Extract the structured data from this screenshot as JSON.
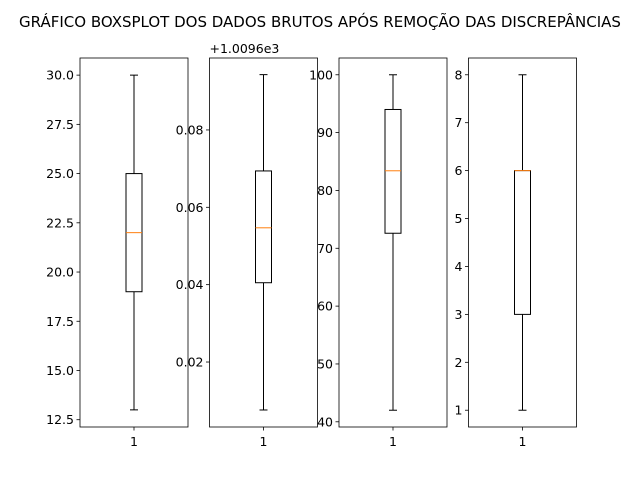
{
  "chart_data": {
    "type": "box",
    "title": "GRÁFICO BOXSPLOT DOS DADOS BRUTOS APÓS REMOÇÃO DAS DISCREPÂNCIAS",
    "colors": {
      "box": "#000000",
      "median": "#ff7f0e",
      "whisker": "#000000"
    },
    "subplots": [
      {
        "category": "1",
        "ylim": [
          12.13,
          30.87
        ],
        "yticks": [
          12.5,
          15.0,
          17.5,
          20.0,
          22.5,
          25.0,
          27.5,
          30.0
        ],
        "ytick_labels": [
          "12.5",
          "15.0",
          "17.5",
          "20.0",
          "22.5",
          "25.0",
          "27.5",
          "30.0"
        ],
        "offset_label": "",
        "box": {
          "whislo": 13.0,
          "q1": 19.0,
          "med": 22.0,
          "q3": 25.0,
          "whishi": 30.0
        }
      },
      {
        "category": "1",
        "ylim": [
          0.0032,
          0.0986
        ],
        "yticks": [
          0.02,
          0.04,
          0.06,
          0.08
        ],
        "ytick_labels": [
          "0.02",
          "0.04",
          "0.06",
          "0.08"
        ],
        "offset_label": "+1.0096e3",
        "box": {
          "whislo": 0.0076,
          "q1": 0.0405,
          "med": 0.0547,
          "q3": 0.0694,
          "whishi": 0.0943
        }
      },
      {
        "category": "1",
        "ylim": [
          39.1,
          102.9
        ],
        "yticks": [
          40,
          50,
          60,
          70,
          80,
          90,
          100
        ],
        "ytick_labels": [
          "40",
          "50",
          "60",
          "70",
          "80",
          "90",
          "100"
        ],
        "offset_label": "",
        "box": {
          "whislo": 42.0,
          "q1": 72.6,
          "med": 83.4,
          "q3": 94.0,
          "whishi": 100.0
        }
      },
      {
        "category": "1",
        "ylim": [
          0.65,
          8.35
        ],
        "yticks": [
          1,
          2,
          3,
          4,
          5,
          6,
          7,
          8
        ],
        "ytick_labels": [
          "1",
          "2",
          "3",
          "4",
          "5",
          "6",
          "7",
          "8"
        ],
        "offset_label": "",
        "box": {
          "whislo": 1.0,
          "q1": 3.0,
          "med": 6.0,
          "q3": 6.0,
          "whishi": 8.0
        }
      }
    ]
  }
}
